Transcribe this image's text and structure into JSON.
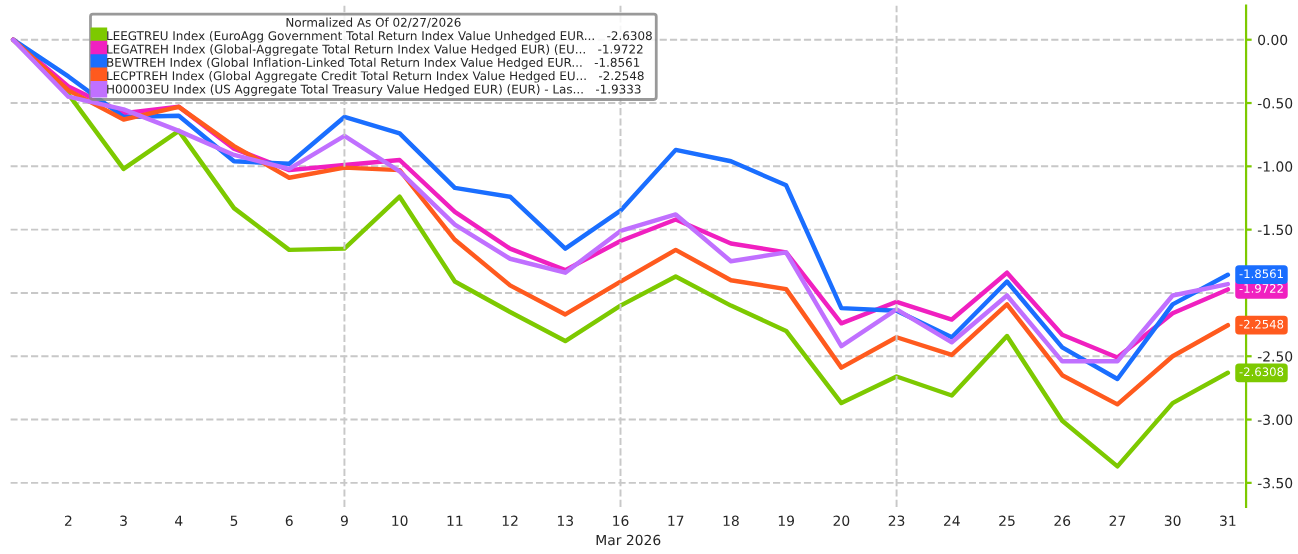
{
  "chart_data": {
    "type": "line",
    "categories": [
      null,
      "2",
      "3",
      "4",
      "5",
      "6",
      "9",
      "10",
      "11",
      "12",
      "13",
      "16",
      "17",
      "18",
      "19",
      "20",
      "23",
      "24",
      "25",
      "26",
      "27",
      "30",
      "31"
    ],
    "xlabel": "Mar 2026",
    "legend_title": "Normalized As Of 02/27/2026",
    "series": [
      {
        "name": "LEEGTREU Index (EuroAgg Government Total Return Index Value Unhedged EUR...   -2.6308",
        "color": "#7dc900",
        "values": [
          0,
          -0.43,
          -1.02,
          -0.72,
          -1.33,
          -1.66,
          -1.65,
          -1.24,
          -1.91,
          -2.15,
          -2.38,
          -2.1,
          -1.87,
          -2.1,
          -2.3,
          -2.87,
          -2.66,
          -2.81,
          -2.34,
          -3.01,
          -3.37,
          -2.87,
          -2.6308
        ],
        "value_labels": [
          null,
          null,
          null,
          null,
          null,
          null,
          null,
          null,
          null,
          null,
          null,
          null,
          null,
          null,
          null,
          null,
          null,
          null,
          null,
          null,
          null,
          null,
          "-2.6308"
        ]
      },
      {
        "name": "LEGATREH Index (Global-Aggregate Total Return Index Value Hedged EUR) (EU...   -1.9722",
        "color": "#f020c0",
        "values": [
          0,
          -0.37,
          -0.58,
          -0.53,
          -0.86,
          -1.03,
          -0.99,
          -0.95,
          -1.36,
          -1.65,
          -1.82,
          -1.59,
          -1.42,
          -1.61,
          -1.68,
          -2.24,
          -2.07,
          -2.21,
          -1.84,
          -2.33,
          -2.51,
          -2.16,
          -1.9722
        ],
        "value_labels": [
          null,
          null,
          null,
          null,
          null,
          null,
          null,
          null,
          null,
          null,
          null,
          null,
          null,
          null,
          null,
          null,
          null,
          null,
          null,
          null,
          null,
          null,
          "-1.9722"
        ]
      },
      {
        "name": "BEWTREH Index (Global Inflation-Linked Total Return Index Value Hedged EUR...   -1.8561",
        "color": "#1a6eff",
        "values": [
          0,
          -0.29,
          -0.61,
          -0.6,
          -0.96,
          -0.98,
          -0.61,
          -0.74,
          -1.17,
          -1.24,
          -1.65,
          -1.35,
          -0.87,
          -0.96,
          -1.15,
          -2.12,
          -2.14,
          -2.35,
          -1.91,
          -2.43,
          -2.68,
          -2.09,
          -1.8561
        ],
        "value_labels": [
          null,
          null,
          null,
          null,
          null,
          null,
          null,
          null,
          null,
          null,
          null,
          null,
          null,
          null,
          null,
          null,
          null,
          null,
          null,
          null,
          null,
          null,
          "-1.8561"
        ]
      },
      {
        "name": "LECPTREH Index (Global Aggregate Credit Total Return Index Value Hedged EU...   -2.2548",
        "color": "#ff5a1e",
        "values": [
          0,
          -0.4,
          -0.63,
          -0.53,
          -0.84,
          -1.09,
          -1.01,
          -1.03,
          -1.58,
          -1.94,
          -2.17,
          -1.91,
          -1.66,
          -1.9,
          -1.97,
          -2.59,
          -2.35,
          -2.49,
          -2.09,
          -2.65,
          -2.88,
          -2.5,
          -2.2548
        ],
        "value_labels": [
          null,
          null,
          null,
          null,
          null,
          null,
          null,
          null,
          null,
          null,
          null,
          null,
          null,
          null,
          null,
          null,
          null,
          null,
          null,
          null,
          null,
          null,
          "-2.2548"
        ]
      },
      {
        "name": "H00003EU Index (US Aggregate Total Treasury Value Hedged EUR) (EUR) - Las...   -1.9333",
        "color": "#c070ff",
        "values": [
          0,
          -0.45,
          -0.55,
          -0.72,
          -0.91,
          -1.02,
          -0.76,
          -1.04,
          -1.46,
          -1.73,
          -1.84,
          -1.51,
          -1.38,
          -1.75,
          -1.68,
          -2.42,
          -2.13,
          -2.39,
          -2.02,
          -2.54,
          -2.54,
          -2.02,
          -1.93
        ]
      }
    ],
    "ylim": [
      -3.69,
      0.27
    ],
    "yticks": [
      {
        "value": 0,
        "label": "0.00"
      },
      {
        "value": -0.5,
        "label": "-0.50"
      },
      {
        "value": -1,
        "label": "-1.00"
      },
      {
        "value": -1.5,
        "label": "-1.50"
      },
      {
        "value": -2,
        "label": null
      },
      {
        "value": -2.5,
        "label": "-2.50"
      },
      {
        "value": -3,
        "label": "-3.00"
      },
      {
        "value": -3.5,
        "label": "-3.50"
      }
    ],
    "ref_lines": [
      {
        "axis": "x",
        "value": "9",
        "color": "#c8c8c8",
        "line_style": "dashed"
      },
      {
        "axis": "x",
        "value": "16",
        "color": "#c8c8c8",
        "line_style": "dashed"
      },
      {
        "axis": "x",
        "value": "23",
        "color": "#c8c8c8",
        "line_style": "dashed"
      }
    ],
    "grid": "y",
    "legend": "top left",
    "marker": "none",
    "line_style": "solid"
  }
}
